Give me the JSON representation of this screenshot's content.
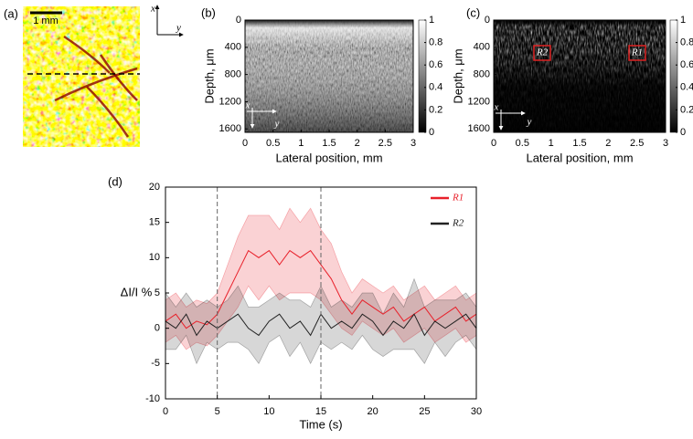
{
  "chart_data": [
    {
      "type": "image",
      "panel_label": "(a)",
      "scale_label": "1 mm",
      "annotations": [
        "x",
        "y"
      ]
    },
    {
      "type": "heatmap",
      "panel_label": "(b)",
      "xlabel": "Lateral position, mm",
      "ylabel": "Depth, μm",
      "xlim": [
        0,
        3
      ],
      "xticks": [
        0,
        0.5,
        1,
        1.5,
        2,
        2.5,
        3
      ],
      "ylim": [
        1650,
        0
      ],
      "yticks": [
        0,
        400,
        800,
        1200,
        1600
      ],
      "clim": [
        0,
        1
      ],
      "cticks": [
        0,
        0.2,
        0.4,
        0.6,
        0.8,
        1
      ],
      "annotations": [
        "x",
        "y"
      ]
    },
    {
      "type": "heatmap",
      "panel_label": "(c)",
      "xlabel": "Lateral position, mm",
      "ylabel": "Depth, μm",
      "xlim": [
        0,
        3
      ],
      "xticks": [
        0,
        0.5,
        1,
        1.5,
        2,
        2.5,
        3
      ],
      "ylim": [
        1650,
        0
      ],
      "yticks": [
        0,
        400,
        800,
        1200,
        1600
      ],
      "clim": [
        0,
        1
      ],
      "cticks": [
        0,
        0.2,
        0.4,
        0.6,
        0.8,
        1
      ],
      "annotations": [
        "x",
        "y",
        "R2",
        "R1"
      ]
    },
    {
      "type": "line",
      "panel_label": "(d)",
      "xlabel": "Time (s)",
      "ylabel": "ΔI/I %",
      "xlim": [
        0,
        30
      ],
      "xticks": [
        0,
        5,
        10,
        15,
        20,
        25,
        30
      ],
      "ylim": [
        -10,
        20
      ],
      "yticks": [
        -10,
        -5,
        0,
        5,
        10,
        15,
        20
      ],
      "vlines": [
        5,
        15
      ],
      "legend": "upper right",
      "x": [
        0,
        1,
        2,
        3,
        4,
        5,
        6,
        7,
        8,
        9,
        10,
        11,
        12,
        13,
        14,
        15,
        16,
        17,
        18,
        19,
        20,
        21,
        22,
        23,
        24,
        25,
        26,
        27,
        28,
        29,
        30
      ],
      "series": [
        {
          "name": "R1",
          "color": "#e8202a",
          "values": [
            1,
            2,
            0,
            1,
            0.5,
            2,
            5,
            8,
            11,
            10,
            11,
            9,
            11,
            10,
            11,
            9,
            7,
            4,
            2,
            4,
            3,
            2,
            3,
            1,
            2,
            3,
            1,
            2,
            3,
            1,
            2
          ],
          "errors": [
            3,
            3,
            3,
            3,
            3,
            3,
            4,
            5,
            5,
            6,
            5,
            5,
            6,
            5,
            6,
            5,
            5,
            4,
            3,
            3,
            3,
            3,
            3,
            3,
            3,
            3,
            3,
            3,
            3,
            3,
            3
          ]
        },
        {
          "name": "R2",
          "color": "#222222",
          "values": [
            1,
            0,
            2,
            -1,
            1,
            0,
            1,
            2,
            0,
            -1,
            1,
            2,
            0,
            1,
            -1,
            2,
            0,
            1,
            0,
            2,
            1,
            -1,
            1,
            0,
            2,
            -1,
            1,
            0,
            1,
            2,
            0
          ],
          "errors": [
            4,
            3,
            3,
            4,
            3,
            3,
            3,
            4,
            3,
            4,
            3,
            3,
            4,
            3,
            4,
            4,
            3,
            3,
            3,
            3,
            4,
            3,
            4,
            3,
            5,
            4,
            3,
            4,
            3,
            3,
            3
          ]
        }
      ]
    }
  ]
}
